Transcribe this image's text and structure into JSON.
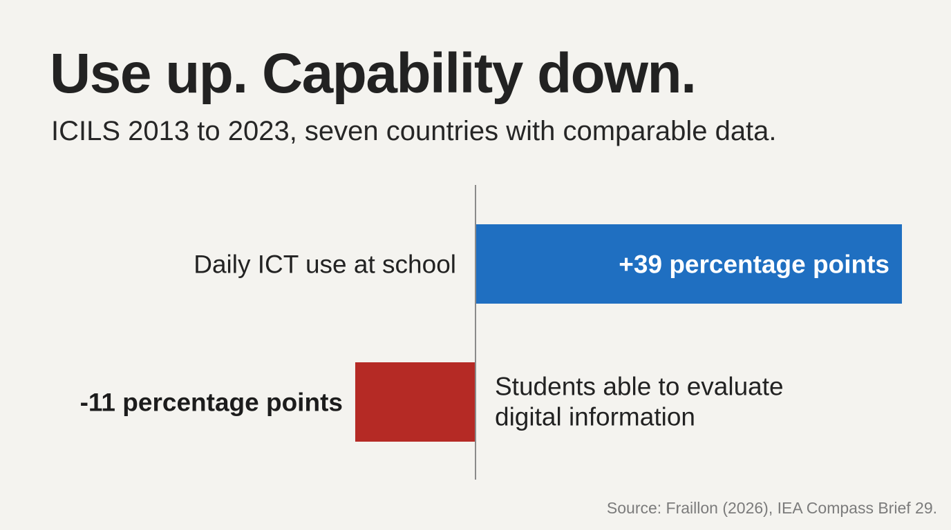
{
  "chart_data": {
    "type": "bar",
    "orientation": "horizontal",
    "title": "Use up. Capability down.",
    "subtitle": "ICILS 2013 to 2023, seven countries with comparable data.",
    "unit": "percentage points",
    "xlim": [
      -11,
      39
    ],
    "categories": [
      "Daily ICT use at school",
      "Students able to evaluate digital information"
    ],
    "values": [
      39,
      -11
    ],
    "data_labels": [
      "+39 percentage points",
      "-11 percentage points"
    ],
    "colors": [
      "#1f6fc1",
      "#b52a25"
    ],
    "source": "Source: Fraillon (2026), IEA Compass Brief 29."
  }
}
